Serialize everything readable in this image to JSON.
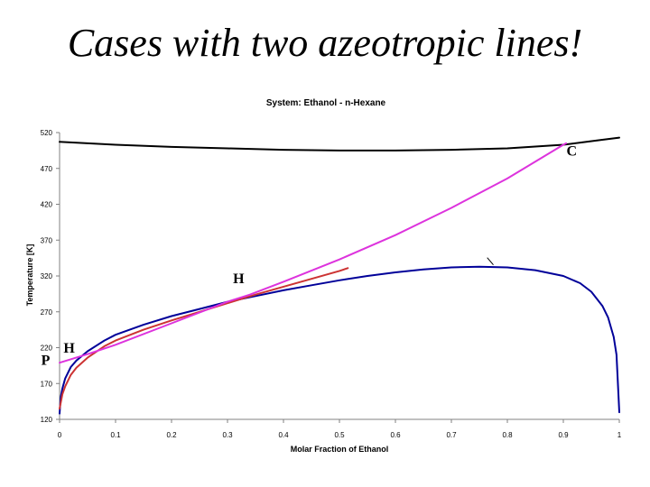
{
  "slide": {
    "title": "Cases with two azeotropic lines!"
  },
  "chart_data": {
    "type": "line",
    "title": "System: Ethanol - n-Hexane",
    "xlabel": "Molar Fraction of Ethanol",
    "ylabel": "Temperature [K]",
    "xlim": [
      0,
      1
    ],
    "ylim": [
      120,
      520
    ],
    "xticks": [
      "0",
      "0.1",
      "0.2",
      "0.3",
      "0.4",
      "0.5",
      "0.6",
      "0.7",
      "0.8",
      "0.9",
      "1"
    ],
    "yticks": [
      "120",
      "170",
      "220",
      "270",
      "320",
      "370",
      "420",
      "470",
      "520"
    ],
    "grid": false,
    "legend": "none",
    "series": [
      {
        "color": "#000000",
        "x": [
          0,
          0.1,
          0.2,
          0.3,
          0.4,
          0.5,
          0.6,
          0.7,
          0.8,
          0.9,
          0.96,
          1.0
        ],
        "y": [
          507,
          503,
          500,
          498,
          496,
          495,
          495,
          496,
          498,
          503,
          509,
          513
        ]
      },
      {
        "color": "#000099",
        "x": [
          0.0,
          0.002,
          0.005,
          0.01,
          0.02,
          0.03,
          0.05,
          0.08,
          0.1,
          0.15,
          0.2,
          0.25,
          0.3,
          0.35,
          0.4,
          0.45,
          0.5,
          0.55,
          0.6,
          0.65,
          0.7,
          0.75,
          0.8,
          0.85,
          0.9,
          0.93,
          0.95,
          0.97,
          0.98,
          0.99,
          0.995,
          1.0
        ],
        "y": [
          128,
          150,
          163,
          177,
          193,
          202,
          215,
          230,
          238,
          252,
          264,
          274,
          284,
          292,
          300,
          307,
          314,
          320,
          325,
          329,
          332,
          333,
          332,
          328,
          320,
          310,
          298,
          278,
          262,
          235,
          210,
          130
        ]
      },
      {
        "color": "#cc3333",
        "x": [
          0.0,
          0.005,
          0.01,
          0.02,
          0.03,
          0.05,
          0.08,
          0.1,
          0.15,
          0.2,
          0.25,
          0.3,
          0.35,
          0.4,
          0.45,
          0.5,
          0.515
        ],
        "y": [
          135,
          155,
          166,
          182,
          192,
          206,
          222,
          230,
          245,
          258,
          270,
          282,
          294,
          305,
          316,
          327,
          331
        ]
      },
      {
        "color": "#dd33dd",
        "x": [
          0,
          0.05,
          0.1,
          0.2,
          0.3,
          0.34,
          0.4,
          0.5,
          0.6,
          0.7,
          0.8,
          0.9,
          0.905
        ],
        "y": [
          199,
          211,
          224,
          254,
          284,
          294,
          312,
          343,
          377,
          415,
          456,
          503,
          505
        ]
      }
    ],
    "annotations": [
      {
        "text": "C",
        "x": 0.915,
        "y": 488
      },
      {
        "text": "H",
        "x": 0.32,
        "y": 310
      },
      {
        "text": "H",
        "x": 0.017,
        "y": 213
      },
      {
        "text": "P",
        "x": -0.025,
        "y": 196
      }
    ]
  }
}
